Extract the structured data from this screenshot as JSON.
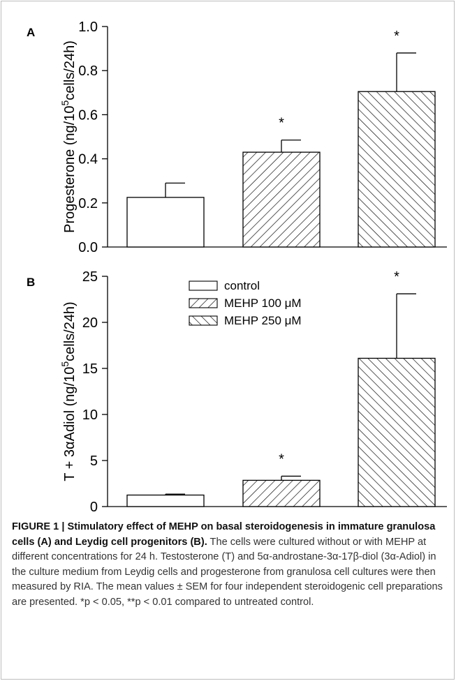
{
  "chart_data": [
    {
      "type": "bar",
      "panel_label": "A",
      "ylabel_html": "Progesterone (ng/10<tspan baseline-shift='super' font-size='70%'>5</tspan>cells/24h)",
      "ylabel": "Progesterone (ng/105cells/24h)",
      "ylim": [
        0.0,
        1.0
      ],
      "ytick_labels": [
        "0.0",
        "0.2",
        "0.4",
        "0.6",
        "0.8",
        "1.0"
      ],
      "categories": [
        "control",
        "MEHP 100 μM",
        "MEHP 250 μM"
      ],
      "values": [
        0.225,
        0.43,
        0.705
      ],
      "errors": [
        0.065,
        0.055,
        0.175
      ],
      "annotations": [
        "",
        "*",
        "*"
      ]
    },
    {
      "type": "bar",
      "panel_label": "B",
      "ylabel_html": "T + 3αAdiol (ng/10<tspan baseline-shift='super' font-size='70%'>5</tspan>cells/24h)",
      "ylabel": "T + 3αAdiol (ng/105cells/24h)",
      "ylim": [
        0,
        25
      ],
      "ytick_labels": [
        "0",
        "5",
        "10",
        "15",
        "20",
        "25"
      ],
      "categories": [
        "control",
        "MEHP 100 μM",
        "MEHP 250 μM"
      ],
      "values": [
        1.25,
        2.85,
        16.1
      ],
      "errors": [
        0.1,
        0.45,
        7.0
      ],
      "annotations": [
        "",
        "*",
        "*"
      ],
      "legend": [
        "control",
        "MEHP 100 μM",
        "MEHP 250 μM"
      ],
      "legend_position": "top-center"
    }
  ],
  "caption": {
    "bold": "FIGURE 1 | Stimulatory effect of MEHP on basal steroidogenesis in immature granulosa cells (A) and Leydig cell progenitors (B).",
    "text": " The cells were cultured without or with MEHP at different concentrations for 24 h. Testosterone (T) and 5α-androstane-3α-17β-diol (3α-Adiol) in the culture medium from Leydig cells and progesterone from granulosa cell cultures were then measured by RIA. The mean values ± SEM for four independent steroidogenic cell preparations are presented. *p < 0.05, **p < 0.01 compared to untreated control."
  },
  "colors": {
    "bar_fill": "#ffffff",
    "bar_stroke": "#000000",
    "frame": "#bdbdbd",
    "caption_text": "#333333"
  }
}
